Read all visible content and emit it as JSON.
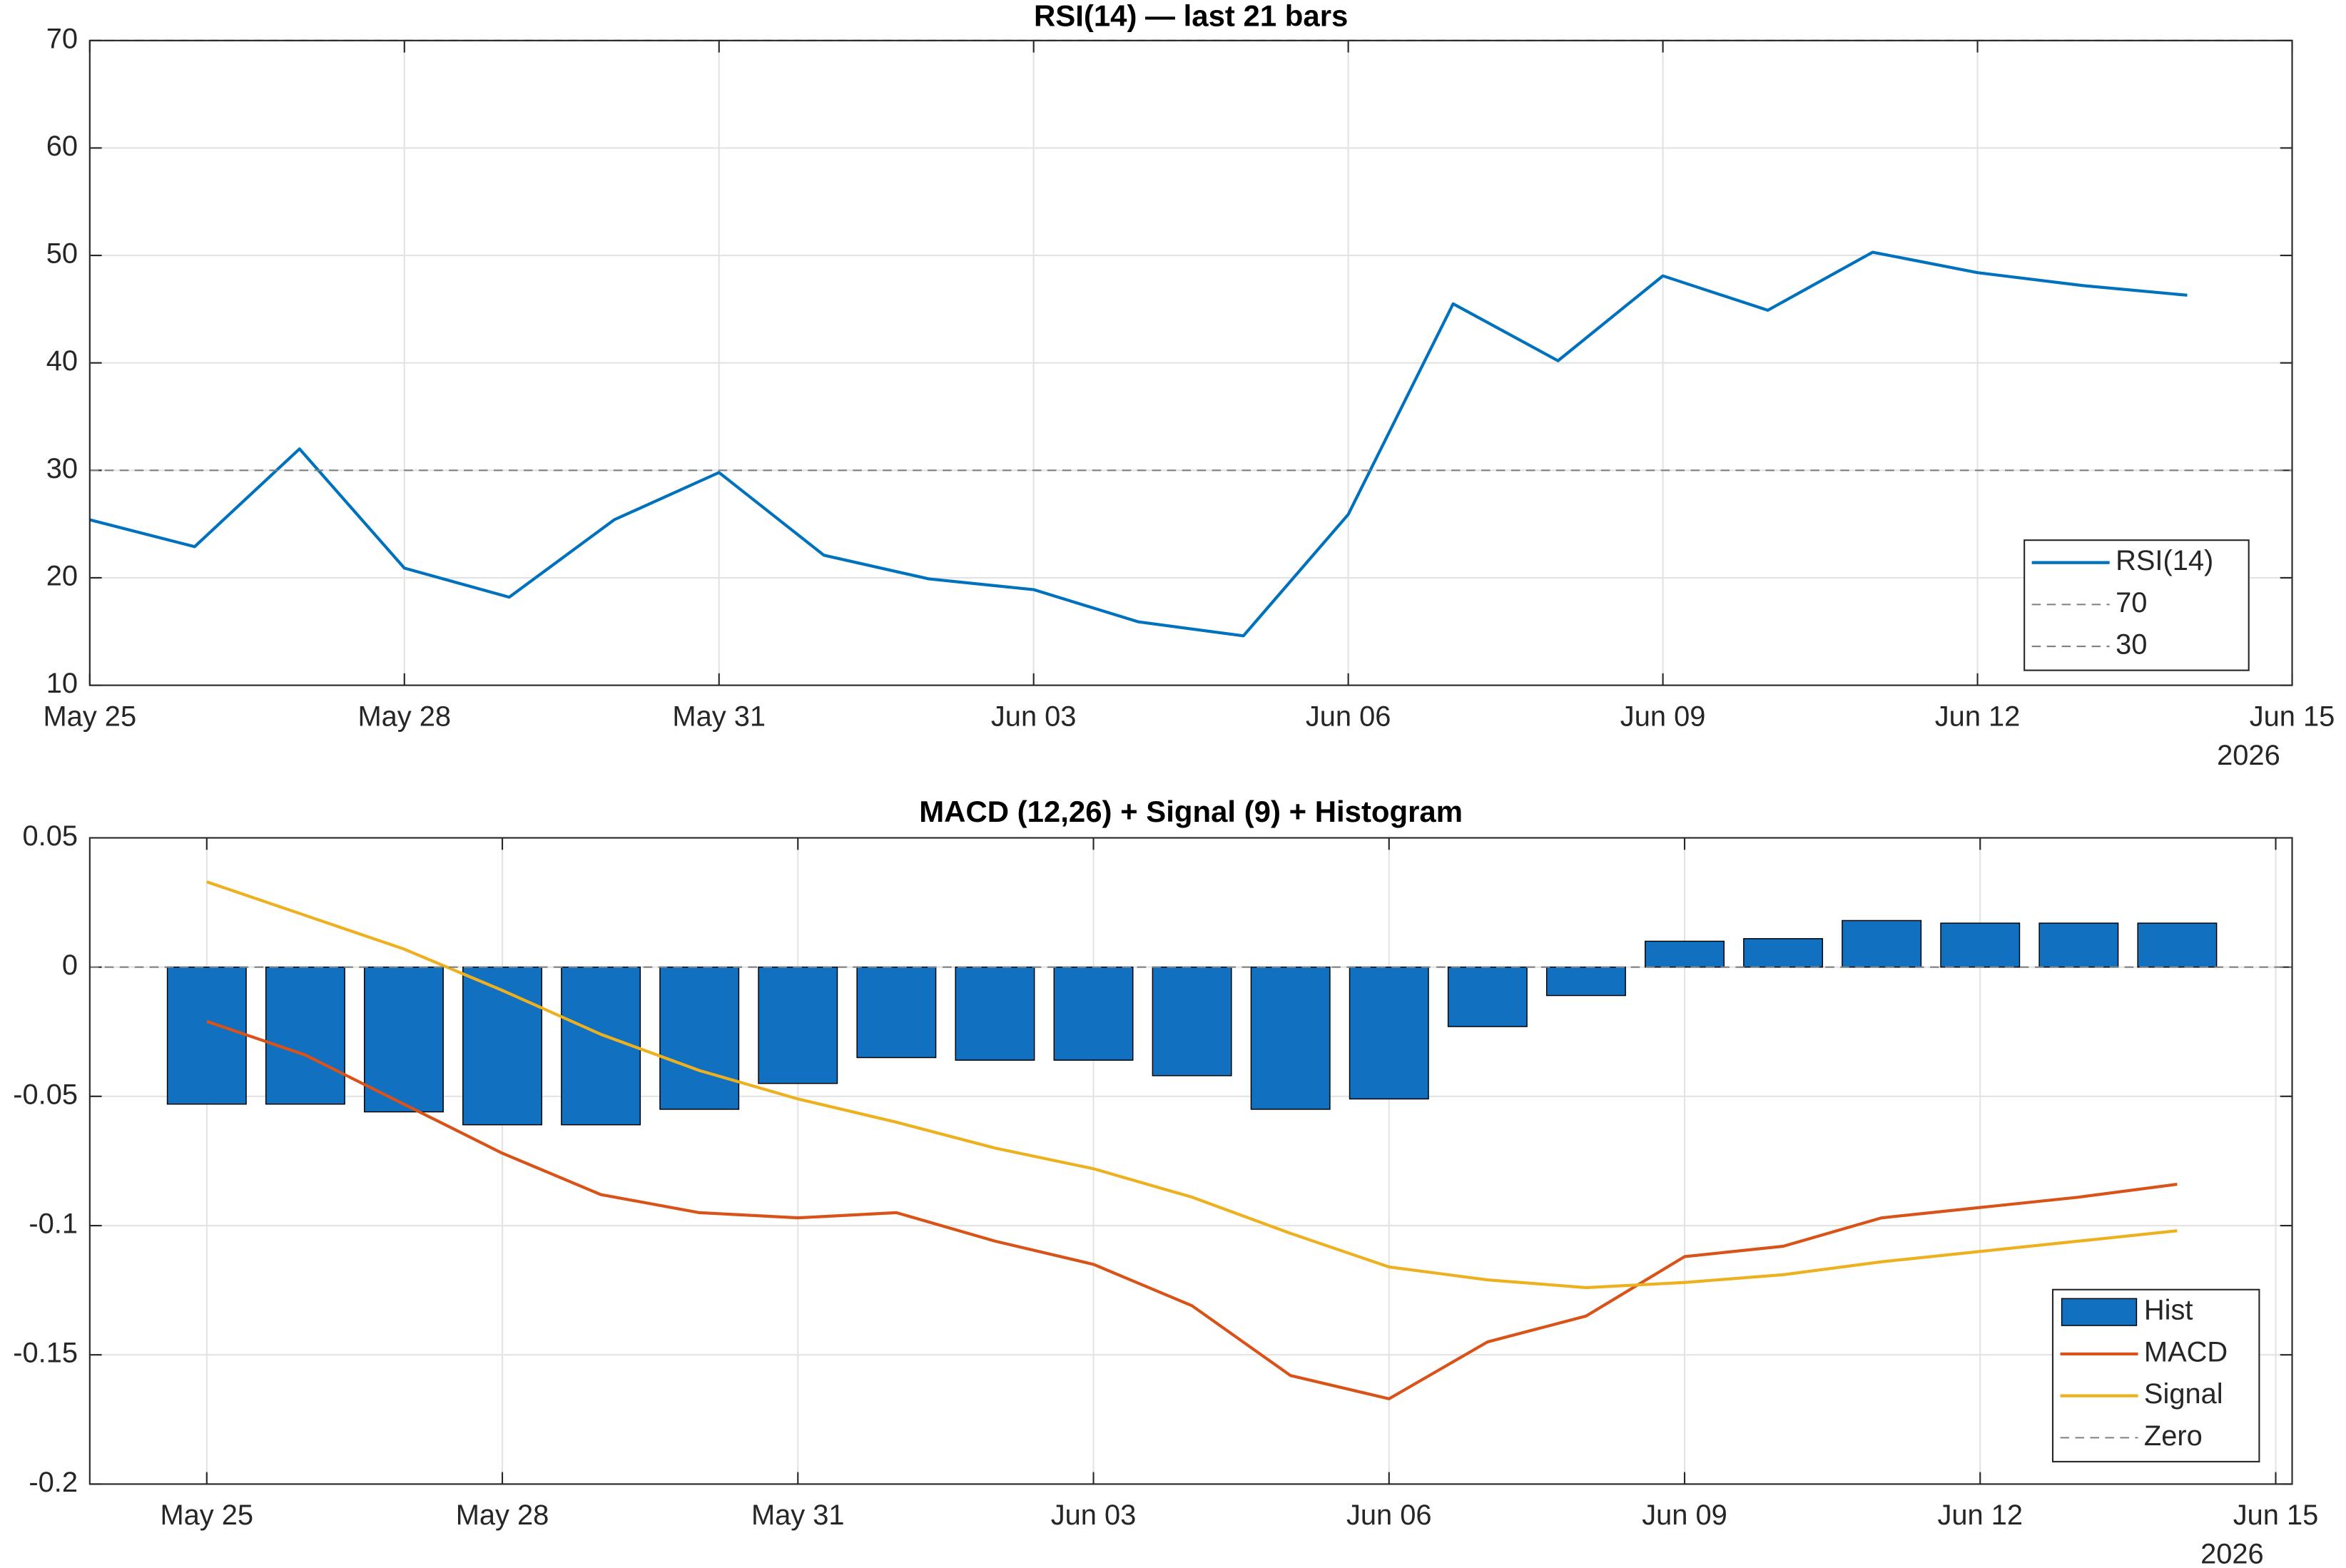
{
  "chart_data": [
    {
      "type": "line",
      "title": "RSI(14) — last 21 bars",
      "x": [
        "2026-05-25",
        "2026-05-26",
        "2026-05-27",
        "2026-05-28",
        "2026-05-29",
        "2026-05-30",
        "2026-05-31",
        "2026-06-01",
        "2026-06-02",
        "2026-06-03",
        "2026-06-04",
        "2026-06-05",
        "2026-06-06",
        "2026-06-07",
        "2026-06-08",
        "2026-06-09",
        "2026-06-10",
        "2026-06-11",
        "2026-06-12",
        "2026-06-13",
        "2026-06-14"
      ],
      "series": [
        {
          "name": "RSI(14)",
          "color": "#0072BD",
          "values": [
            25.4,
            22.9,
            32.0,
            20.9,
            18.2,
            25.4,
            29.8,
            22.1,
            19.9,
            18.9,
            15.9,
            14.6,
            25.9,
            45.5,
            40.2,
            48.1,
            44.9,
            50.3,
            48.4,
            47.2,
            46.3
          ]
        }
      ],
      "hlines": [
        {
          "name": "70",
          "value": 70,
          "color": "#808080"
        },
        {
          "name": "30",
          "value": 30,
          "color": "#808080"
        }
      ],
      "xlim": [
        "2026-05-25",
        "2026-06-15"
      ],
      "xticks": [
        {
          "value": "2026-05-25",
          "label": "May 25"
        },
        {
          "value": "2026-05-28",
          "label": "May 28"
        },
        {
          "value": "2026-05-31",
          "label": "May 31"
        },
        {
          "value": "2026-06-03",
          "label": "Jun 03"
        },
        {
          "value": "2026-06-06",
          "label": "Jun 06"
        },
        {
          "value": "2026-06-09",
          "label": "Jun 09"
        },
        {
          "value": "2026-06-12",
          "label": "Jun 12"
        },
        {
          "value": "2026-06-15",
          "label": "Jun 15"
        }
      ],
      "x_year_label": "2026",
      "ylim": [
        10,
        70
      ],
      "yticks": [
        10,
        20,
        30,
        40,
        50,
        60,
        70
      ],
      "grid": true,
      "legend": "southeast"
    },
    {
      "type": "combo",
      "title": "MACD (12,26) + Signal (9) + Histogram",
      "x": [
        "2026-05-25",
        "2026-05-26",
        "2026-05-27",
        "2026-05-28",
        "2026-05-29",
        "2026-05-30",
        "2026-05-31",
        "2026-06-01",
        "2026-06-02",
        "2026-06-03",
        "2026-06-04",
        "2026-06-05",
        "2026-06-06",
        "2026-06-07",
        "2026-06-08",
        "2026-06-09",
        "2026-06-10",
        "2026-06-11",
        "2026-06-12",
        "2026-06-13",
        "2026-06-14"
      ],
      "series": [
        {
          "name": "Hist",
          "type": "bar",
          "color": "#1170C0",
          "values": [
            -0.053,
            -0.053,
            -0.056,
            -0.061,
            -0.061,
            -0.055,
            -0.045,
            -0.035,
            -0.036,
            -0.036,
            -0.042,
            -0.055,
            -0.051,
            -0.023,
            -0.011,
            0.01,
            0.011,
            0.018,
            0.017,
            0.017,
            0.017
          ]
        },
        {
          "name": "MACD",
          "type": "line",
          "color": "#D95319",
          "values": [
            -0.021,
            -0.034,
            -0.053,
            -0.072,
            -0.088,
            -0.095,
            -0.097,
            -0.095,
            -0.106,
            -0.115,
            -0.131,
            -0.158,
            -0.167,
            -0.145,
            -0.135,
            -0.112,
            -0.108,
            -0.097,
            -0.093,
            -0.089,
            -0.084
          ]
        },
        {
          "name": "Signal",
          "type": "line",
          "color": "#EDB120",
          "values": [
            0.033,
            0.02,
            0.007,
            -0.009,
            -0.026,
            -0.04,
            -0.051,
            -0.06,
            -0.07,
            -0.078,
            -0.089,
            -0.103,
            -0.116,
            -0.121,
            -0.124,
            -0.122,
            -0.119,
            -0.114,
            -0.11,
            -0.106,
            -0.102
          ]
        }
      ],
      "hlines": [
        {
          "name": "Zero",
          "value": 0,
          "color": "#808080"
        }
      ],
      "xlim": [
        "2026-05-23T19:30",
        "2026-06-15T04:00"
      ],
      "xticks": [
        {
          "value": "2026-05-25",
          "label": "May 25"
        },
        {
          "value": "2026-05-28",
          "label": "May 28"
        },
        {
          "value": "2026-05-31",
          "label": "May 31"
        },
        {
          "value": "2026-06-03",
          "label": "Jun 03"
        },
        {
          "value": "2026-06-06",
          "label": "Jun 06"
        },
        {
          "value": "2026-06-09",
          "label": "Jun 09"
        },
        {
          "value": "2026-06-12",
          "label": "Jun 12"
        },
        {
          "value": "2026-06-15",
          "label": "Jun 15"
        }
      ],
      "x_year_label": "2026",
      "ylim": [
        -0.2,
        0.05
      ],
      "yticks": [
        -0.2,
        -0.15,
        -0.1,
        -0.05,
        0,
        0.05
      ],
      "grid": true,
      "legend": "southeast"
    }
  ]
}
